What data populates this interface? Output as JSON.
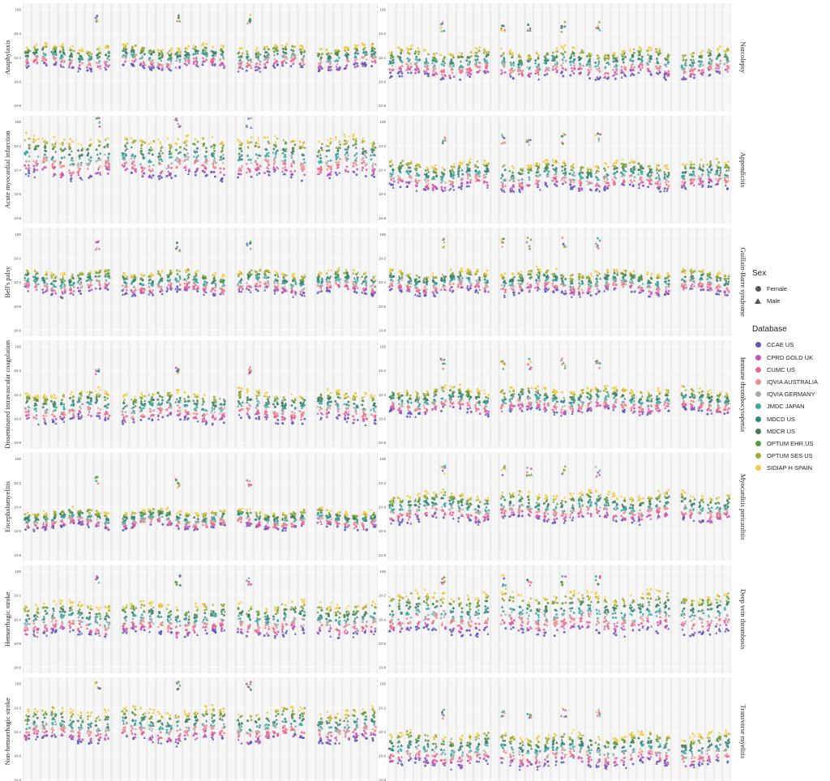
{
  "chart_data": {
    "type": "scatter",
    "y_scale": "log",
    "grid": true,
    "legend_position": "right",
    "panels_left": [
      {
        "label": "Anaphylaxis",
        "center_exp": -4.0,
        "spread": 0.9,
        "spike": 1.7
      },
      {
        "label": "Acute myocardial infarction",
        "center_exp": -3.0,
        "spread": 1.6,
        "spike": 1.5
      },
      {
        "label": "Bell's palsy",
        "center_exp": -4.0,
        "spread": 0.9,
        "spike": 1.6
      },
      {
        "label": "Disseminated intravascular coagulation",
        "center_exp": -5.0,
        "spread": 1.2,
        "spike": 1.6
      },
      {
        "label": "Encephalomyelitis",
        "center_exp": -5.0,
        "spread": 0.7,
        "spike": 1.6
      },
      {
        "label": "Hemorrhagic stroke",
        "center_exp": -4.0,
        "spread": 1.3,
        "spike": 1.8
      },
      {
        "label": "Non-hemorrhagic stroke",
        "center_exp": -3.5,
        "spread": 1.3,
        "spike": 1.9
      }
    ],
    "panels_right": [
      {
        "label": "Narcolepsy",
        "center_exp": -4.5,
        "spread": 1.1,
        "spike": 1.6
      },
      {
        "label": "Appendicitis",
        "center_exp": -4.5,
        "spread": 1.1,
        "spike": 1.6
      },
      {
        "label": "Guillain-Barre syndrome",
        "center_exp": -4.0,
        "spread": 0.9,
        "spike": 1.8
      },
      {
        "label": "Immune thrombocytopenia",
        "center_exp": -4.5,
        "spread": 1.0,
        "spike": 1.6
      },
      {
        "label": "Myocarditis pericarditis",
        "center_exp": -4.0,
        "spread": 1.1,
        "spike": 1.5
      },
      {
        "label": "Deep vein thrombosis",
        "center_exp": -3.5,
        "spread": 1.6,
        "spike": 1.3
      },
      {
        "label": "Transverse myelitis",
        "center_exp": -5.5,
        "spread": 1.3,
        "spike": 1.6
      }
    ],
    "n_groups_left": 40,
    "n_groups_right": 40,
    "left_gaps": [
      10,
      23,
      32
    ],
    "right_gaps": [
      12,
      33
    ],
    "spike_groups_left": [
      8,
      17,
      25
    ],
    "spike_groups_right": [
      6,
      13,
      16,
      20,
      24
    ],
    "databases": [
      {
        "name": "CCAE US",
        "color": "#5b57b8"
      },
      {
        "name": "CPRD GOLD UK",
        "color": "#c456b6"
      },
      {
        "name": "CUMC US",
        "color": "#e7668a"
      },
      {
        "name": "IQVIA AUSTRALIA",
        "color": "#f08e8e"
      },
      {
        "name": "IQVIA GERMANY",
        "color": "#a8a8a8"
      },
      {
        "name": "JMDC JAPAN",
        "color": "#3aa9a3"
      },
      {
        "name": "MDCD US",
        "color": "#34857b"
      },
      {
        "name": "MDCR US",
        "color": "#3f7d58"
      },
      {
        "name": "OPTUM EHR US",
        "color": "#5a9a3e"
      },
      {
        "name": "OPTUM SES US",
        "color": "#a2aa3c"
      },
      {
        "name": "SIDIAP H SPAIN",
        "color": "#f2cb46"
      }
    ],
    "sex": [
      "Female",
      "Male"
    ]
  },
  "legend": {
    "sex_title": "Sex",
    "female_label": "Female",
    "male_label": "Male",
    "database_title": "Database"
  }
}
